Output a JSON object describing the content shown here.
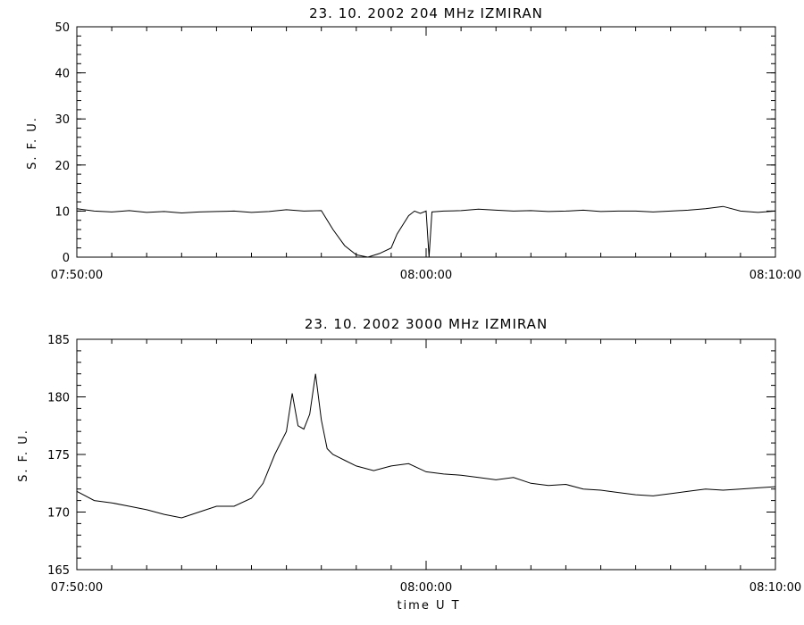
{
  "chart_data": [
    {
      "type": "line",
      "title": "23.  10.  2002    204 MHz    IZMIRAN",
      "ylabel": "S. F. U.",
      "xlabel": "",
      "xlim": [
        "07:50:00",
        "08:10:00"
      ],
      "ylim": [
        0,
        50
      ],
      "y_ticks": [
        0,
        10,
        20,
        30,
        40,
        50
      ],
      "x_ticks": [
        "07:50:00",
        "08:00:00",
        "08:10:00"
      ],
      "grid": false,
      "series": [
        {
          "x": [
            "07:50:00",
            "07:50:30",
            "07:51:00",
            "07:51:30",
            "07:52:00",
            "07:52:30",
            "07:53:00",
            "07:53:30",
            "07:54:00",
            "07:54:30",
            "07:55:00",
            "07:55:30",
            "07:56:00",
            "07:56:30",
            "07:57:00",
            "07:57:20",
            "07:57:40",
            "07:58:00",
            "07:58:20",
            "07:58:40",
            "07:59:00",
            "07:59:10",
            "07:59:20",
            "07:59:30",
            "07:59:40",
            "07:59:50",
            "08:00:00",
            "08:00:05",
            "08:00:10",
            "08:00:30",
            "08:01:00",
            "08:01:30",
            "08:02:00",
            "08:02:30",
            "08:03:00",
            "08:03:30",
            "08:04:00",
            "08:04:30",
            "08:05:00",
            "08:05:30",
            "08:06:00",
            "08:06:30",
            "08:07:00",
            "08:07:30",
            "08:08:00",
            "08:08:30",
            "08:09:00",
            "08:09:30",
            "08:10:00"
          ],
          "values": [
            10.5,
            10,
            9.8,
            10.1,
            9.7,
            9.9,
            9.6,
            9.8,
            9.9,
            10,
            9.7,
            9.9,
            10.3,
            10,
            10.1,
            6,
            2.5,
            0.5,
            0,
            0.8,
            2,
            5,
            7,
            9,
            10,
            9.5,
            10,
            0,
            9.8,
            10,
            10.1,
            10.4,
            10.2,
            10,
            10.1,
            9.9,
            10,
            10.2,
            9.9,
            10,
            10,
            9.8,
            10,
            10.2,
            10.5,
            11,
            10,
            9.7,
            10
          ]
        }
      ]
    },
    {
      "type": "line",
      "title": "23.  10.  2002    3000 MHz    IZMIRAN",
      "ylabel": "S. F. U.",
      "xlabel": "time   U T",
      "xlim": [
        "07:50:00",
        "08:10:00"
      ],
      "ylim": [
        165,
        185
      ],
      "y_ticks": [
        165,
        170,
        175,
        180,
        185
      ],
      "x_ticks": [
        "07:50:00",
        "08:00:00",
        "08:10:00"
      ],
      "grid": false,
      "series": [
        {
          "x": [
            "07:50:00",
            "07:50:30",
            "07:51:00",
            "07:51:30",
            "07:52:00",
            "07:52:30",
            "07:53:00",
            "07:53:30",
            "07:54:00",
            "07:54:30",
            "07:55:00",
            "07:55:20",
            "07:55:40",
            "07:56:00",
            "07:56:10",
            "07:56:20",
            "07:56:30",
            "07:56:40",
            "07:56:50",
            "07:57:00",
            "07:57:10",
            "07:57:20",
            "07:57:40",
            "07:58:00",
            "07:58:30",
            "07:59:00",
            "07:59:30",
            "08:00:00",
            "08:00:30",
            "08:01:00",
            "08:01:30",
            "08:02:00",
            "08:02:30",
            "08:03:00",
            "08:03:30",
            "08:04:00",
            "08:04:30",
            "08:05:00",
            "08:05:30",
            "08:06:00",
            "08:06:30",
            "08:07:00",
            "08:07:30",
            "08:08:00",
            "08:08:30",
            "08:09:00",
            "08:09:30",
            "08:10:00"
          ],
          "values": [
            171.8,
            171,
            170.8,
            170.5,
            170.2,
            169.8,
            169.5,
            170,
            170.5,
            170.5,
            171.2,
            172.5,
            175,
            177,
            180.3,
            177.5,
            177.2,
            178.5,
            182,
            178,
            175.5,
            175,
            174.5,
            174,
            173.6,
            174,
            174.2,
            173.5,
            173.3,
            173.2,
            173,
            172.8,
            173,
            172.5,
            172.3,
            172.4,
            172,
            171.9,
            171.7,
            171.5,
            171.4,
            171.6,
            171.8,
            172,
            171.9,
            172,
            172.1,
            172.2
          ]
        }
      ]
    }
  ]
}
